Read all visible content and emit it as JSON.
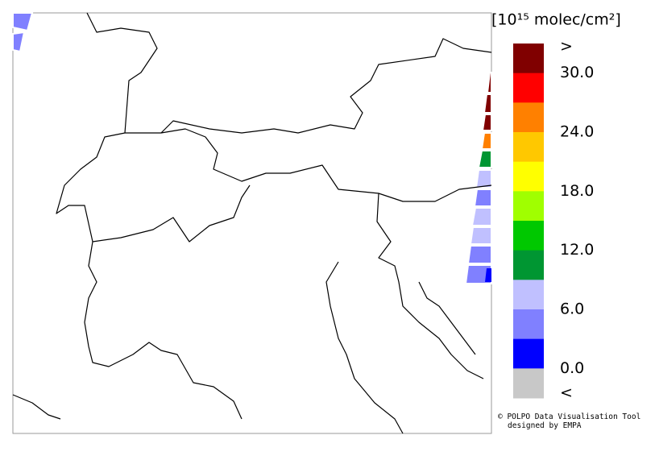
{
  "legend": {
    "title": "[10¹⁵ molec/cm²]",
    "colors": [
      "#800000",
      "#ff0000",
      "#ff8000",
      "#ffc800",
      "#ffff00",
      "#a0ff00",
      "#00c800",
      "#009632",
      "#c0c0ff",
      "#8080ff",
      "#0000ff",
      "#c8c8c8"
    ],
    "labels": [
      ">",
      "30.0",
      "24.0",
      "18.0",
      "12.0",
      "6.0",
      "0.0",
      "<"
    ]
  },
  "credits": [
    "© POLPO Data Visualisation Tool",
    "designed by EMPA"
  ]
}
